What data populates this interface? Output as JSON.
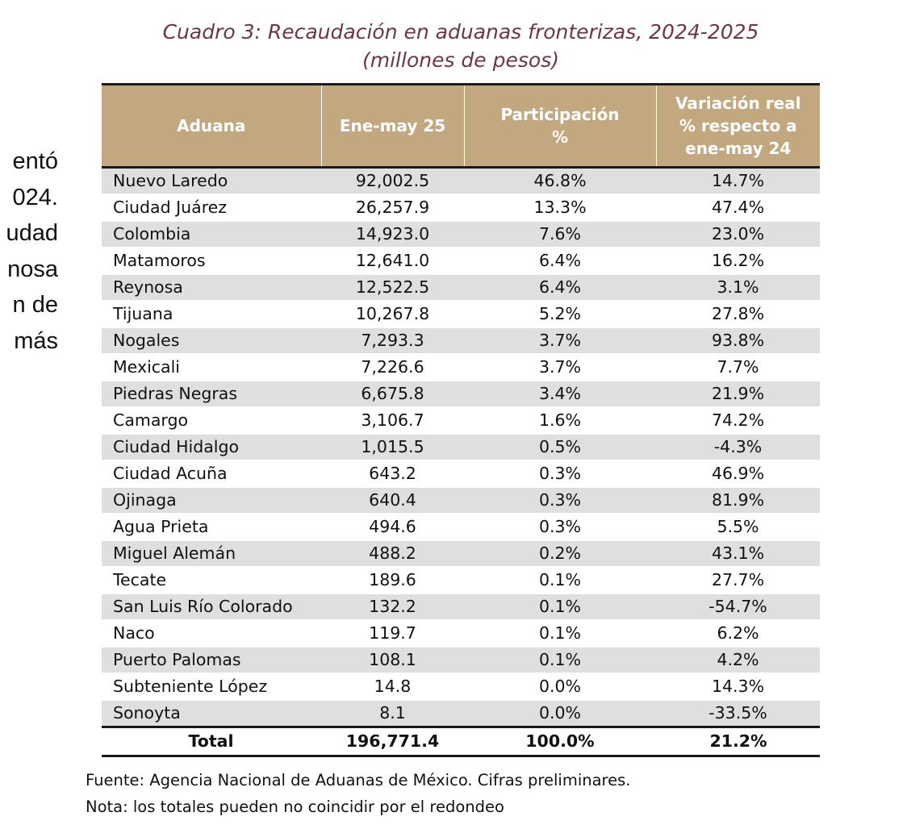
{
  "side_text": [
    "entó",
    "024.",
    "udad",
    "nosa",
    "n de",
    "más"
  ],
  "title": {
    "line1": "Cuadro 3: Recaudación en aduanas fronterizas, 2024-2025",
    "line2": "(millones de pesos)"
  },
  "colors": {
    "title": "#6e3546",
    "header_bg": "#c3a77f",
    "row_stripe": "#dfdfdf"
  },
  "table": {
    "headers": [
      [
        "Aduana"
      ],
      [
        "Ene-may 25"
      ],
      [
        "Participación",
        "%"
      ],
      [
        "Variación real",
        "% respecto a",
        "ene-may 24"
      ]
    ],
    "rows": [
      [
        "Nuevo Laredo",
        "92,002.5",
        "46.8%",
        "14.7%"
      ],
      [
        "Ciudad Juárez",
        "26,257.9",
        "13.3%",
        "47.4%"
      ],
      [
        "Colombia",
        "14,923.0",
        "7.6%",
        "23.0%"
      ],
      [
        "Matamoros",
        "12,641.0",
        "6.4%",
        "16.2%"
      ],
      [
        "Reynosa",
        "12,522.5",
        "6.4%",
        "3.1%"
      ],
      [
        "Tijuana",
        "10,267.8",
        "5.2%",
        "27.8%"
      ],
      [
        "Nogales",
        "7,293.3",
        "3.7%",
        "93.8%"
      ],
      [
        "Mexicali",
        "7,226.6",
        "3.7%",
        "7.7%"
      ],
      [
        "Piedras Negras",
        "6,675.8",
        "3.4%",
        "21.9%"
      ],
      [
        "Camargo",
        "3,106.7",
        "1.6%",
        "74.2%"
      ],
      [
        "Ciudad Hidalgo",
        "1,015.5",
        "0.5%",
        "-4.3%"
      ],
      [
        "Ciudad Acuña",
        "643.2",
        "0.3%",
        "46.9%"
      ],
      [
        "Ojinaga",
        "640.4",
        "0.3%",
        "81.9%"
      ],
      [
        "Agua Prieta",
        "494.6",
        "0.3%",
        "5.5%"
      ],
      [
        "Miguel Alemán",
        "488.2",
        "0.2%",
        "43.1%"
      ],
      [
        "Tecate",
        "189.6",
        "0.1%",
        "27.7%"
      ],
      [
        "San Luis Río Colorado",
        "132.2",
        "0.1%",
        "-54.7%"
      ],
      [
        "Naco",
        "119.7",
        "0.1%",
        "6.2%"
      ],
      [
        "Puerto Palomas",
        "108.1",
        "0.1%",
        "4.2%"
      ],
      [
        "Subteniente López",
        "14.8",
        "0.0%",
        "14.3%"
      ],
      [
        "Sonoyta",
        "8.1",
        "0.0%",
        "-33.5%"
      ]
    ],
    "total": [
      "Total",
      "196,771.4",
      "100.0%",
      "21.2%"
    ]
  },
  "notes": {
    "source": "Fuente:  Agencia Nacional de Aduanas de México. Cifras preliminares.",
    "note": "Nota: los totales pueden no coincidir por el redondeo"
  }
}
